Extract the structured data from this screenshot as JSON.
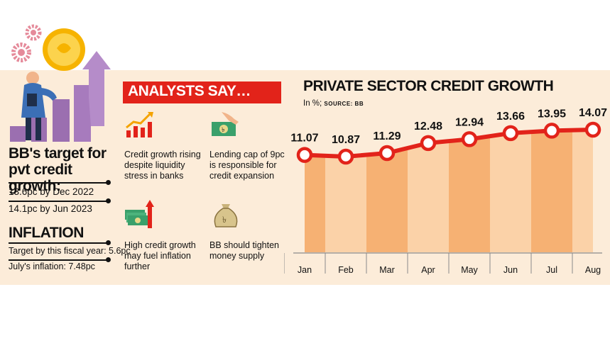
{
  "left": {
    "target_title": "BB's target for pvt credit growth:",
    "target_lines": [
      "13.6pc by Dec 2022",
      "14.1pc by Jun 2023"
    ],
    "inflation_title": "INFLATION",
    "inflation_lines": [
      "Target by this fiscal year: 5.6pc",
      "July's inflation: 7.48pc"
    ]
  },
  "analysts": {
    "heading": "ANALYSTS SAY…",
    "points": [
      {
        "text": "Credit growth rising despite liquidity stress in banks",
        "icon": "growth-chart-icon"
      },
      {
        "text": "Lending cap of 9pc is responsible for credit expansion",
        "icon": "hand-money-icon"
      },
      {
        "text": "High credit growth may fuel inflation further",
        "icon": "cash-arrow-up-icon"
      },
      {
        "text": "BB should tighten money supply",
        "icon": "money-bag-icon"
      }
    ]
  },
  "colors": {
    "line": "#e2231a",
    "bar_dark": "#f6b173",
    "bar_light": "#fbd2a8",
    "panel": "#fcecd9",
    "banner": "#e2231a"
  },
  "chart_data": {
    "type": "line",
    "title": "PRIVATE SECTOR CREDIT GROWTH",
    "unit_label": "In %;",
    "source_label": "SOURCE: BB",
    "categories": [
      "Jan",
      "Feb",
      "Mar",
      "Apr",
      "May",
      "Jun",
      "Jul",
      "Aug"
    ],
    "values": [
      11.07,
      10.87,
      11.29,
      12.48,
      12.94,
      13.66,
      13.95,
      14.07
    ],
    "data_labels": [
      "11.07",
      "10.87",
      "11.29",
      "12.48",
      "12.94",
      "13.66",
      "13.95",
      "14.07"
    ],
    "area_fill": true,
    "grid": false
  }
}
